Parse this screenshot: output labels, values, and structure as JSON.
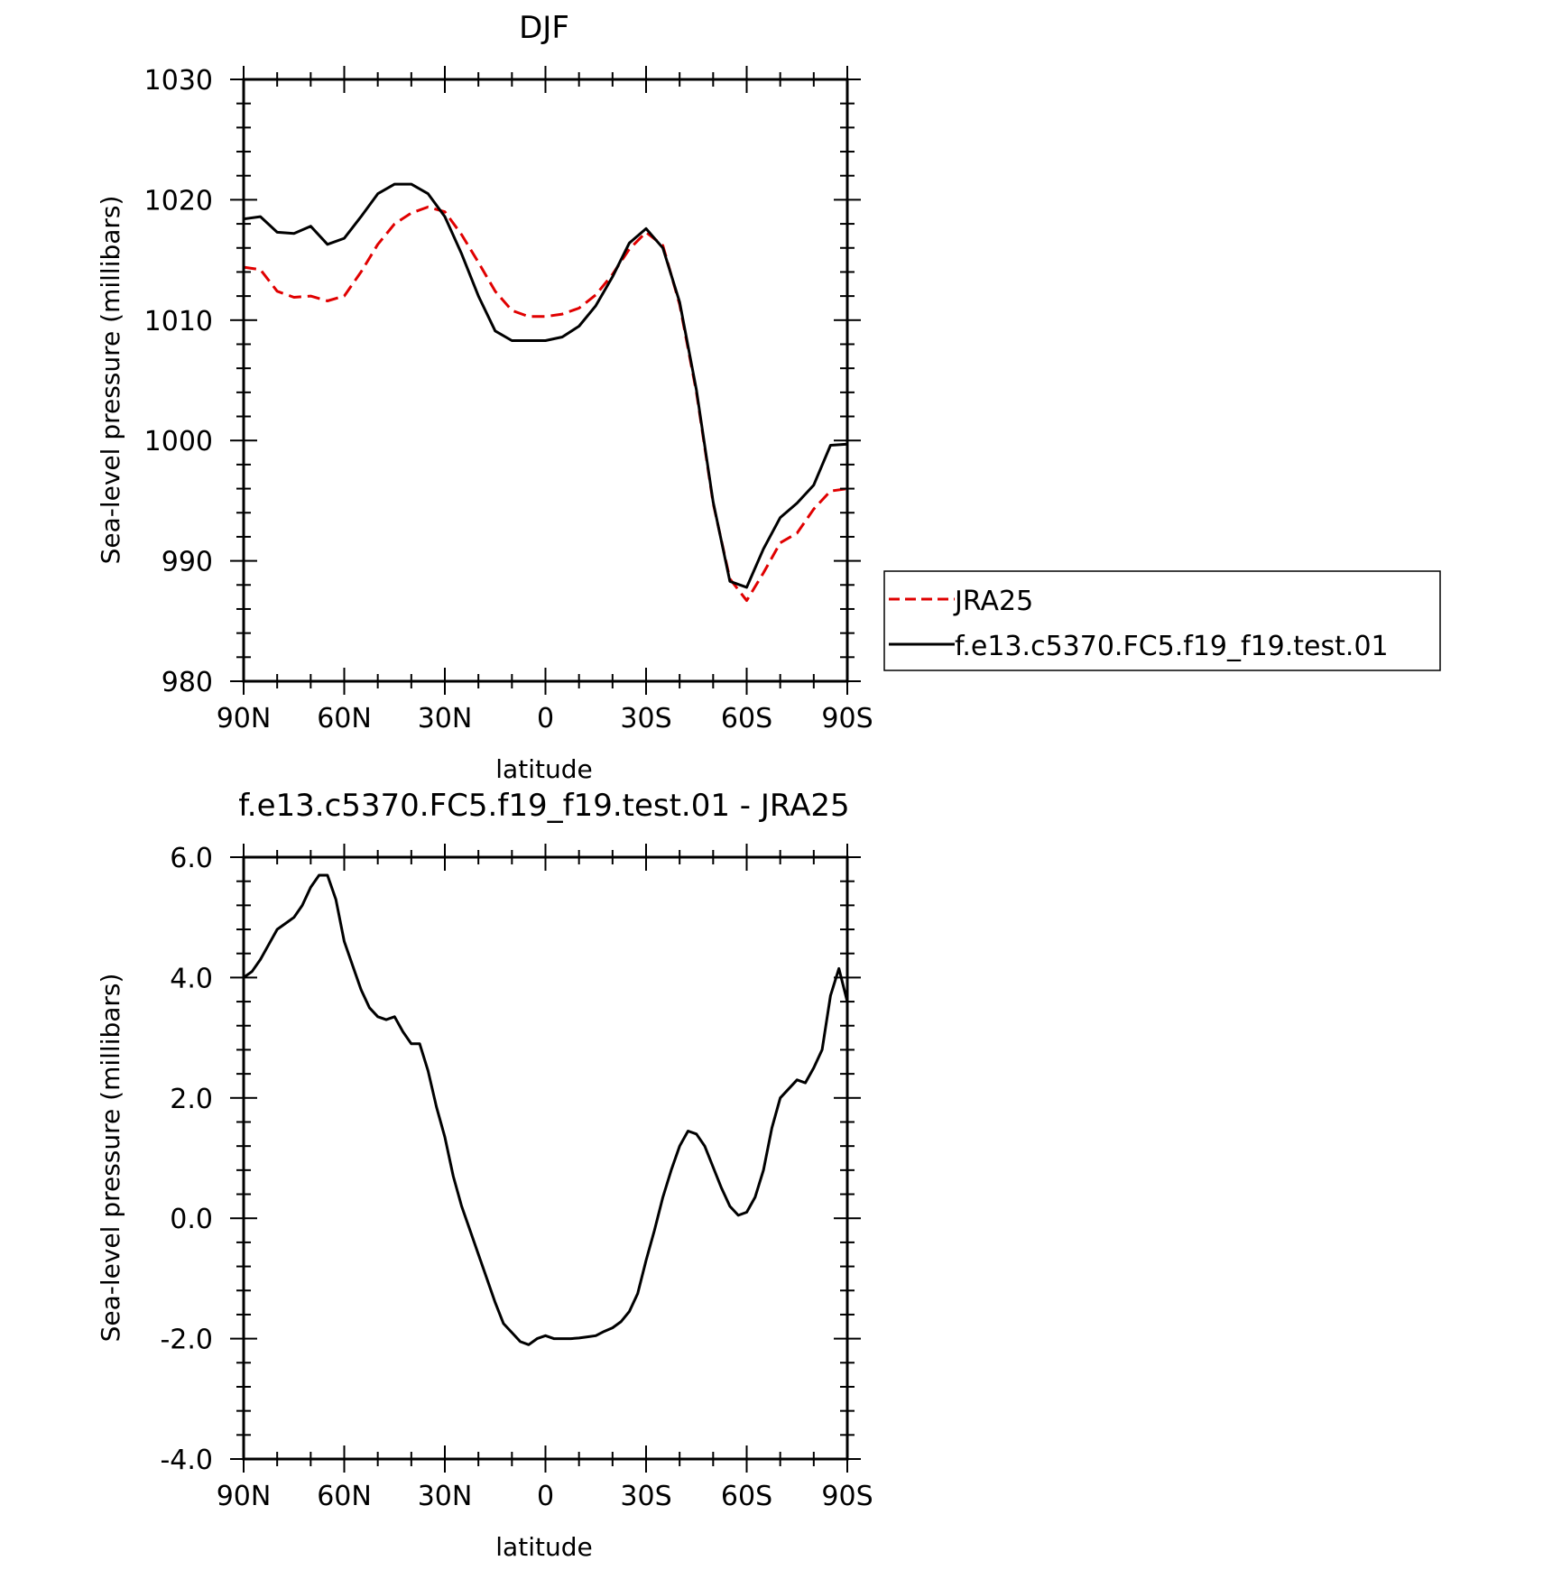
{
  "chart_data": [
    {
      "type": "line",
      "title": "DJF",
      "xlabel": "latitude",
      "ylabel": "Sea-level pressure (millibars)",
      "xlim": [
        90,
        -90
      ],
      "ylim": [
        980,
        1030
      ],
      "xticks": [
        90,
        60,
        30,
        0,
        -30,
        -60,
        -90
      ],
      "xtick_labels": [
        "90N",
        "60N",
        "30N",
        "0",
        "30S",
        "60S",
        "90S"
      ],
      "yticks": [
        980,
        990,
        1000,
        1010,
        1020,
        1030
      ],
      "ytick_labels": [
        "980",
        "990",
        "1000",
        "1010",
        "1020",
        "1030"
      ],
      "legend": "right",
      "series": [
        {
          "name": "JRA25",
          "color": "#e00000",
          "dashed": true,
          "x": [
            90,
            85,
            80,
            75,
            70,
            65,
            60,
            55,
            50,
            45,
            40,
            35,
            30,
            25,
            20,
            15,
            10,
            5,
            0,
            -5,
            -10,
            -15,
            -20,
            -25,
            -30,
            -35,
            -40,
            -45,
            -50,
            -55,
            -60,
            -65,
            -70,
            -75,
            -80,
            -85,
            -90
          ],
          "y": [
            1014.4,
            1014.2,
            1012.4,
            1011.9,
            1012.0,
            1011.6,
            1012.0,
            1014.0,
            1016.3,
            1018.0,
            1018.9,
            1019.4,
            1019.0,
            1017.1,
            1014.8,
            1012.4,
            1010.8,
            1010.3,
            1010.3,
            1010.5,
            1011.0,
            1012.1,
            1013.8,
            1015.9,
            1017.3,
            1016.2,
            1011.3,
            1004.0,
            994.8,
            988.5,
            986.7,
            989.0,
            991.5,
            992.3,
            994.3,
            995.8,
            996.0
          ]
        },
        {
          "name": "f.e13.c5370.FC5.f19_f19.test.01",
          "color": "#000000",
          "dashed": false,
          "x": [
            90,
            85,
            80,
            75,
            70,
            65,
            60,
            55,
            50,
            45,
            40,
            35,
            30,
            25,
            20,
            15,
            10,
            5,
            0,
            -5,
            -10,
            -15,
            -20,
            -25,
            -30,
            -35,
            -40,
            -45,
            -50,
            -55,
            -60,
            -65,
            -70,
            -75,
            -80,
            -85,
            -90
          ],
          "y": [
            1018.4,
            1018.6,
            1017.3,
            1017.2,
            1017.8,
            1016.3,
            1016.8,
            1018.6,
            1020.5,
            1021.3,
            1021.3,
            1020.5,
            1018.6,
            1015.5,
            1012.0,
            1009.1,
            1008.3,
            1008.3,
            1008.3,
            1008.6,
            1009.5,
            1011.2,
            1013.6,
            1016.4,
            1017.6,
            1016.0,
            1011.5,
            1004.2,
            994.9,
            988.3,
            987.8,
            991.0,
            993.6,
            994.8,
            996.3,
            999.6,
            999.7
          ]
        }
      ]
    },
    {
      "type": "line",
      "title": "f.e13.c5370.FC5.f19_f19.test.01 - JRA25",
      "xlabel": "latitude",
      "ylabel": "Sea-level pressure (millibars)",
      "xlim": [
        90,
        -90
      ],
      "ylim": [
        -4.0,
        6.0
      ],
      "xticks": [
        90,
        60,
        30,
        0,
        -30,
        -60,
        -90
      ],
      "xtick_labels": [
        "90N",
        "60N",
        "30N",
        "0",
        "30S",
        "60S",
        "90S"
      ],
      "yticks": [
        -4.0,
        -2.0,
        0.0,
        2.0,
        4.0,
        6.0
      ],
      "ytick_labels": [
        "-4.0",
        "-2.0",
        "0.0",
        "2.0",
        "4.0",
        "6.0"
      ],
      "series": [
        {
          "color": "#000000",
          "x": [
            90,
            87.5,
            85,
            82.5,
            80,
            77.5,
            75,
            72.5,
            70,
            67.5,
            65,
            62.5,
            60,
            57.5,
            55,
            52.5,
            50,
            47.5,
            45,
            42.5,
            40,
            37.5,
            35,
            32.5,
            30,
            27.5,
            25,
            22.5,
            20,
            17.5,
            15,
            12.5,
            10,
            7.5,
            5,
            2.5,
            0,
            -2.5,
            -5,
            -7.5,
            -10,
            -12.5,
            -15,
            -17.5,
            -20,
            -22.5,
            -25,
            -27.5,
            -30,
            -32.5,
            -35,
            -37.5,
            -40,
            -42.5,
            -45,
            -47.5,
            -50,
            -52.5,
            -55,
            -57.5,
            -60,
            -62.5,
            -65,
            -67.5,
            -70,
            -72.5,
            -75,
            -77.5,
            -80,
            -82.5,
            -85,
            -87.5,
            -90
          ],
          "y": [
            4.0,
            4.1,
            4.3,
            4.55,
            4.8,
            4.9,
            5.0,
            5.2,
            5.5,
            5.7,
            5.7,
            5.3,
            4.6,
            4.2,
            3.8,
            3.5,
            3.35,
            3.3,
            3.35,
            3.1,
            2.9,
            2.9,
            2.45,
            1.85,
            1.35,
            0.7,
            0.2,
            -0.2,
            -0.6,
            -1.0,
            -1.4,
            -1.75,
            -1.9,
            -2.05,
            -2.1,
            -2.0,
            -1.95,
            -2.0,
            -2.0,
            -2.0,
            -1.99,
            -1.97,
            -1.95,
            -1.88,
            -1.82,
            -1.72,
            -1.55,
            -1.25,
            -0.7,
            -0.2,
            0.35,
            0.8,
            1.2,
            1.45,
            1.4,
            1.2,
            0.85,
            0.5,
            0.2,
            0.05,
            0.1,
            0.35,
            0.8,
            1.5,
            2.0,
            2.15,
            2.3,
            2.25,
            2.5,
            2.8,
            3.7,
            4.15,
            3.6
          ]
        }
      ]
    }
  ]
}
